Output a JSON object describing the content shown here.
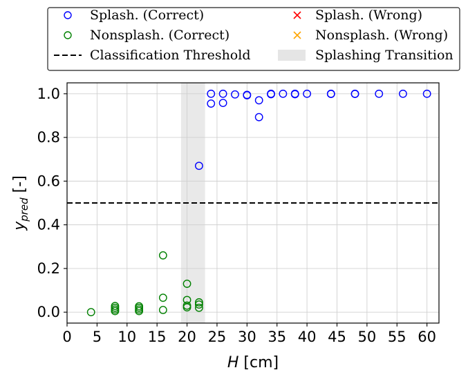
{
  "chart_data": {
    "type": "scatter",
    "xlabel_var": "H",
    "xlabel_unit": "[cm]",
    "ylabel_base": "y",
    "ylabel_sub": "pred",
    "ylabel_unit": "[-]",
    "xlim": [
      0,
      62
    ],
    "ylim": [
      -0.05,
      1.05
    ],
    "xticks": [
      "0",
      "5",
      "10",
      "15",
      "20",
      "25",
      "30",
      "35",
      "40",
      "45",
      "50",
      "55",
      "60"
    ],
    "yticks": [
      "0.0",
      "0.2",
      "0.4",
      "0.6",
      "0.8",
      "1.0"
    ],
    "grid": true,
    "threshold": 0.5,
    "transition_band": [
      19,
      23
    ],
    "legend": {
      "placement": "top, above plot",
      "entries": [
        {
          "label": "Splash. (Correct)",
          "marker": "circle-open",
          "color": "#0000ff"
        },
        {
          "label": "Splash. (Wrong)",
          "marker": "x",
          "color": "#ff0000"
        },
        {
          "label": "Nonsplash. (Correct)",
          "marker": "circle-open",
          "color": "#008000"
        },
        {
          "label": "Nonsplash. (Wrong)",
          "marker": "x",
          "color": "#ffa500"
        },
        {
          "label": "Classification Threshold",
          "marker": "dashed-line",
          "color": "#000000"
        },
        {
          "label": "Splashing Transition",
          "marker": "band",
          "color": "#e5e5e5"
        }
      ]
    },
    "series": [
      {
        "name": "Splash. (Correct)",
        "color": "#0000ff",
        "points": [
          [
            22,
            0.67
          ],
          [
            24,
            0.955
          ],
          [
            24,
            1.0
          ],
          [
            26,
            0.958
          ],
          [
            26,
            1.0
          ],
          [
            28,
            0.997
          ],
          [
            30,
            0.995
          ],
          [
            30,
            0.993
          ],
          [
            32,
            0.893
          ],
          [
            32,
            0.97
          ],
          [
            34,
            0.998
          ],
          [
            34,
            1.0
          ],
          [
            36,
            1.0
          ],
          [
            38,
            0.998
          ],
          [
            38,
            1.0
          ],
          [
            40,
            1.0
          ],
          [
            44,
            1.0
          ],
          [
            44,
            0.999
          ],
          [
            48,
            1.0
          ],
          [
            48,
            0.999
          ],
          [
            52,
            1.0
          ],
          [
            56,
            1.0
          ],
          [
            60,
            1.0
          ]
        ]
      },
      {
        "name": "Nonsplash. (Correct)",
        "color": "#008000",
        "points": [
          [
            4,
            0.0
          ],
          [
            8,
            0.005
          ],
          [
            8,
            0.012
          ],
          [
            8,
            0.02
          ],
          [
            8,
            0.028
          ],
          [
            12,
            0.005
          ],
          [
            12,
            0.012
          ],
          [
            12,
            0.02
          ],
          [
            12,
            0.027
          ],
          [
            16,
            0.26
          ],
          [
            16,
            0.066
          ],
          [
            16,
            0.01
          ],
          [
            20,
            0.13
          ],
          [
            20,
            0.056
          ],
          [
            20,
            0.03
          ],
          [
            20,
            0.022
          ],
          [
            22,
            0.045
          ],
          [
            22,
            0.035
          ],
          [
            22,
            0.02
          ]
        ]
      },
      {
        "name": "Splash. (Wrong)",
        "color": "#ff0000",
        "points": []
      },
      {
        "name": "Nonsplash. (Wrong)",
        "color": "#ffa500",
        "points": []
      }
    ]
  }
}
